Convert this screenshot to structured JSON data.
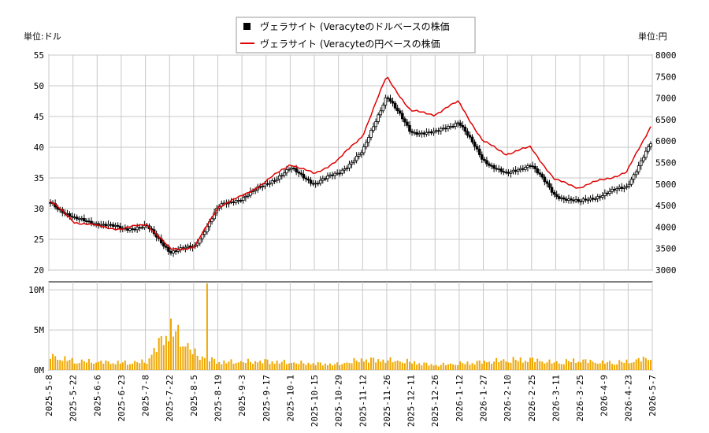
{
  "legend": {
    "usd_label": "ヴェラサイト (Veracyteのドルベースの株価",
    "jpy_label": "ヴェラサイト (Veracyteの円ベースの株価"
  },
  "units": {
    "left": "単位:ドル",
    "right": "単位:円"
  },
  "colors": {
    "usd": "#000000",
    "jpy": "#e00000",
    "volume": "#f0a800",
    "grid": "#c8c8c8"
  },
  "chart_data": {
    "type": "line",
    "price_axis": {
      "left_ticks": [
        "20",
        "25",
        "30",
        "35",
        "40",
        "45",
        "50",
        "55"
      ],
      "left_range": [
        20,
        55
      ],
      "right_ticks": [
        "3000",
        "3500",
        "4000",
        "4500",
        "5000",
        "5500",
        "6000",
        "6500",
        "7000",
        "7500",
        "8000"
      ],
      "right_range": [
        3000,
        8000
      ]
    },
    "volume_axis": {
      "ticks": [
        "0M",
        "5M",
        "10M"
      ],
      "range": [
        0,
        11000000
      ]
    },
    "dates": [
      "2025-5-8",
      "2025-5-22",
      "2025-6-6",
      "2025-6-23",
      "2025-7-8",
      "2025-7-22",
      "2025-8-5",
      "2025-8-19",
      "2025-9-3",
      "2025-9-17",
      "2025-10-1",
      "2025-10-15",
      "2025-10-29",
      "2025-11-12",
      "2025-11-26",
      "2025-12-11",
      "2025-12-26",
      "2026-1-12",
      "2026-1-27",
      "2026-2-10",
      "2026-2-25",
      "2026-3-11",
      "2026-3-25",
      "2026-4-9",
      "2026-4-23",
      "2026-5-7"
    ],
    "series": [
      {
        "name": "ヴェラサイト (Veracyteのドルベースの株価",
        "axis": "left",
        "values": [
          31.0,
          28.3,
          27.6,
          26.7,
          27.1,
          23.0,
          23.8,
          30.3,
          31.8,
          34.0,
          36.5,
          34.1,
          35.8,
          39.2,
          48.5,
          42.5,
          42.3,
          44.2,
          38.0,
          35.5,
          37.3,
          32.2,
          31.0,
          32.3,
          33.6,
          40.5
        ]
      },
      {
        "name": "ヴェラサイト (Veracyteの円ベースの株価",
        "axis": "right",
        "values": [
          4600,
          4120,
          4020,
          3950,
          4080,
          3480,
          3530,
          4480,
          4720,
          5070,
          5470,
          5230,
          5570,
          6130,
          7500,
          6700,
          6620,
          6920,
          6000,
          5700,
          5860,
          5100,
          4920,
          5100,
          5270,
          6350
        ]
      }
    ],
    "volume_millions": [
      1.7,
      1.1,
      1.0,
      0.9,
      1.0,
      5.3,
      2.0,
      1.0,
      1.0,
      1.1,
      0.9,
      0.8,
      0.7,
      1.3,
      1.2,
      1.0,
      0.6,
      0.8,
      1.0,
      1.2,
      1.3,
      0.9,
      1.2,
      0.9,
      1.0,
      1.5
    ],
    "volume_peak_millions": 10.8
  }
}
